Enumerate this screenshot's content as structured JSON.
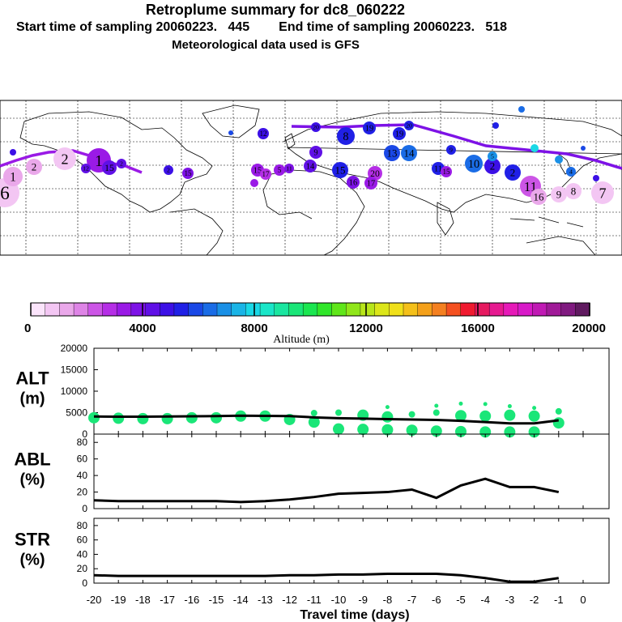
{
  "header": {
    "title": "Retroplume summary for dc8_060222",
    "start_label": "Start time of sampling 20060223.",
    "start_value": "445",
    "end_label": "End time of sampling 20060223.",
    "end_value": "518",
    "met_line": "Meteorological data used is GFS"
  },
  "colorbar": {
    "tick_labels": [
      "0",
      "4000",
      "8000",
      "12000",
      "16000",
      "20000"
    ],
    "title": "Altitude (m)",
    "colors": [
      "#fbe4fb",
      "#f3c6f3",
      "#eaa8ea",
      "#de84e6",
      "#cc55e6",
      "#b52ee6",
      "#9a1ae6",
      "#7d12e6",
      "#6010e6",
      "#3c10e6",
      "#2020e6",
      "#1a48e6",
      "#1a6ce6",
      "#1a90e6",
      "#1ab4e6",
      "#1ad8e6",
      "#1ae6c8",
      "#1ae6a0",
      "#1ae678",
      "#1ae650",
      "#30e62a",
      "#60e61a",
      "#90e61a",
      "#b8e61a",
      "#dce61a",
      "#f0e01a",
      "#f4c01a",
      "#f4a01a",
      "#f48020",
      "#f45020",
      "#f01a30",
      "#e61a60",
      "#e61a90",
      "#e61ab8",
      "#d81ac8",
      "#c01ab4",
      "#a01a98",
      "#801a80",
      "#601a60"
    ]
  },
  "map": {
    "cluster_labels": [
      "1",
      "2",
      "3",
      "4",
      "5",
      "6",
      "7",
      "8",
      "9",
      "10",
      "11",
      "12",
      "13",
      "14",
      "15",
      "16",
      "17",
      "18",
      "19",
      "20"
    ]
  },
  "chart_data": [
    {
      "type": "line",
      "title": "",
      "ylabel_top": "ALT",
      "ylabel_bottom": "(m)",
      "x": [
        -20,
        -19,
        -18,
        -17,
        -16,
        -15,
        -14,
        -13,
        -12,
        -11,
        -10,
        -9,
        -8,
        -7,
        -6,
        -5,
        -4,
        -3,
        -2,
        -1
      ],
      "values": [
        4100,
        4050,
        4050,
        4100,
        4150,
        4200,
        4300,
        4250,
        4200,
        3900,
        3700,
        3600,
        3500,
        3400,
        3300,
        3100,
        2800,
        2500,
        2500,
        3200
      ],
      "scatter_points": [
        [
          -20,
          3800
        ],
        [
          -19,
          3700
        ],
        [
          -18,
          3600
        ],
        [
          -17,
          3600
        ],
        [
          -16,
          3800
        ],
        [
          -15,
          3800
        ],
        [
          -14,
          4200
        ],
        [
          -13,
          4200
        ],
        [
          -12,
          3400
        ],
        [
          -11,
          2800
        ],
        [
          -11,
          4900
        ],
        [
          -10,
          1200
        ],
        [
          -10,
          5000
        ],
        [
          -9,
          1100
        ],
        [
          -9,
          4400
        ],
        [
          -8,
          1000
        ],
        [
          -8,
          4000
        ],
        [
          -8,
          6300
        ],
        [
          -7,
          900
        ],
        [
          -7,
          4600
        ],
        [
          -6,
          700
        ],
        [
          -6,
          5000
        ],
        [
          -6,
          6600
        ],
        [
          -5,
          600
        ],
        [
          -5,
          4300
        ],
        [
          -5,
          7100
        ],
        [
          -4,
          500
        ],
        [
          -4,
          4200
        ],
        [
          -4,
          7000
        ],
        [
          -3,
          500
        ],
        [
          -3,
          4400
        ],
        [
          -3,
          6500
        ],
        [
          -2,
          500
        ],
        [
          -2,
          4200
        ],
        [
          -2,
          6100
        ],
        [
          -1,
          2600
        ],
        [
          -1,
          5300
        ]
      ],
      "ylim": [
        0,
        20000
      ],
      "yticks": [
        "0",
        "5000",
        "10000",
        "15000",
        "20000"
      ],
      "xlim": [
        -20,
        0
      ]
    },
    {
      "type": "line",
      "ylabel_top": "ABL",
      "ylabel_bottom": "(%)",
      "x": [
        -20,
        -19,
        -18,
        -17,
        -16,
        -15,
        -14,
        -13,
        -12,
        -11,
        -10,
        -9,
        -8,
        -7,
        -6,
        -5,
        -4,
        -3,
        -2,
        -1
      ],
      "values": [
        10,
        9,
        9,
        9,
        9,
        9,
        8,
        9,
        11,
        14,
        18,
        19,
        20,
        23,
        13,
        28,
        36,
        26,
        26,
        20
      ],
      "ylim": [
        0,
        90
      ],
      "yticks": [
        "0",
        "20",
        "40",
        "60",
        "80"
      ]
    },
    {
      "type": "line",
      "ylabel_top": "STR",
      "ylabel_bottom": "(%)",
      "x": [
        -20,
        -19,
        -18,
        -17,
        -16,
        -15,
        -14,
        -13,
        -12,
        -11,
        -10,
        -9,
        -8,
        -7,
        -6,
        -5,
        -4,
        -3,
        -2,
        -1
      ],
      "values": [
        11,
        10,
        10,
        10,
        10,
        10,
        10,
        10,
        11,
        11,
        12,
        12,
        13,
        13,
        13,
        11,
        7,
        2,
        2,
        7
      ],
      "ylim": [
        0,
        90
      ],
      "yticks": [
        "0",
        "20",
        "40",
        "60",
        "80"
      ],
      "xlabel": "Travel time (days)",
      "xtick_labels": [
        "-20",
        "-19",
        "-18",
        "-17",
        "-16",
        "-15",
        "-14",
        "-13",
        "-12",
        "-11",
        "-10",
        "-9",
        "-8",
        "-7",
        "-6",
        "-5",
        "-4",
        "-3",
        "-2",
        "-1",
        "0"
      ]
    }
  ]
}
